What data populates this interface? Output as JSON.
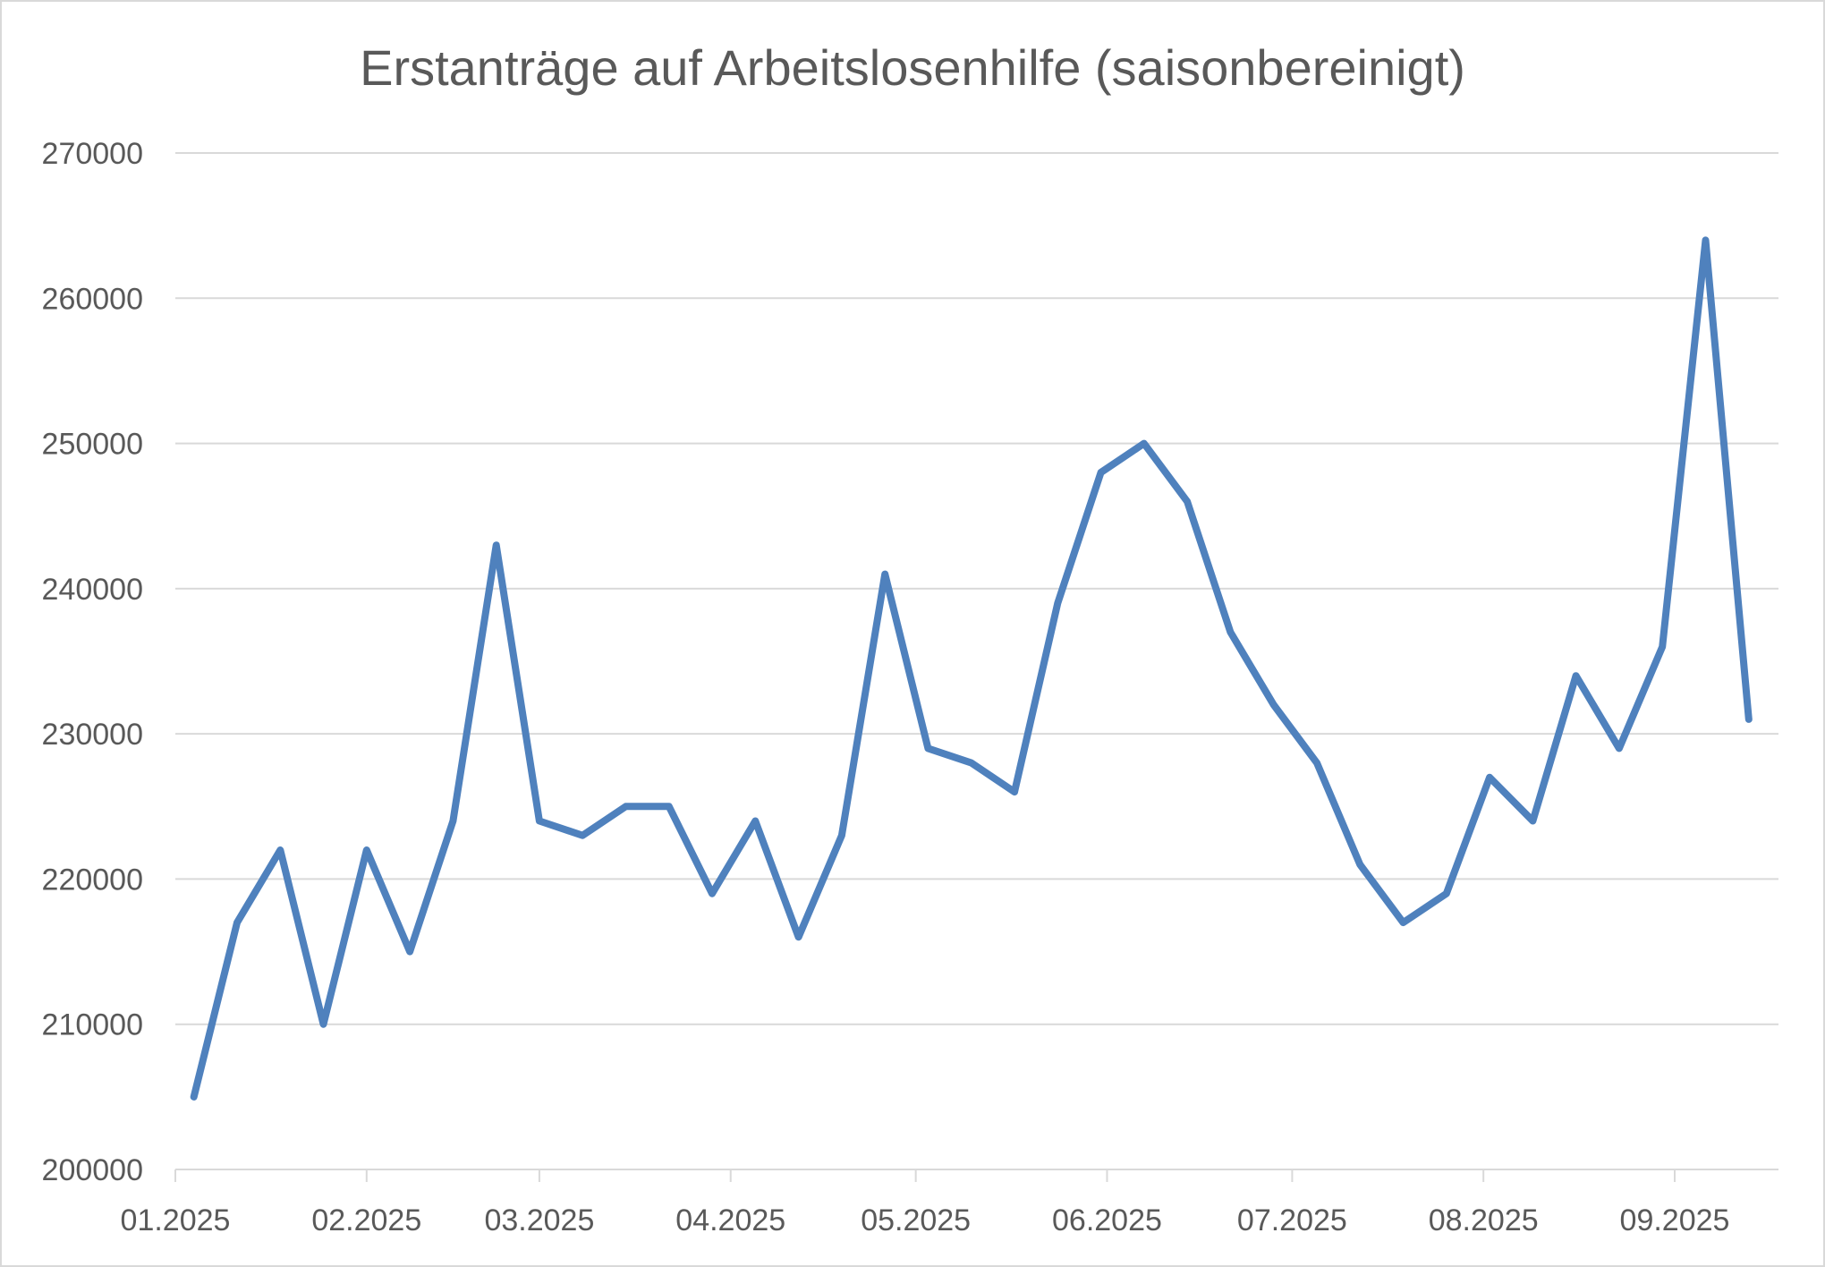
{
  "chart_data": {
    "type": "line",
    "title": "Erstanträge auf Arbeitslosenhilfe (saisonbereinigt)",
    "xlabel": "",
    "ylabel": "",
    "ylim": [
      200000,
      270000
    ],
    "yticks": [
      "200000",
      "210000",
      "220000",
      "230000",
      "240000",
      "250000",
      "260000",
      "270000"
    ],
    "xticks": [
      "01.2025",
      "02.2025",
      "03.2025",
      "04.2025",
      "05.2025",
      "06.2025",
      "07.2025",
      "08.2025",
      "09.2025"
    ],
    "grid": true,
    "legend": "none",
    "line_color": "#4f81bd",
    "x": [
      "2025-01-04",
      "2025-01-11",
      "2025-01-18",
      "2025-01-25",
      "2025-02-01",
      "2025-02-08",
      "2025-02-15",
      "2025-02-22",
      "2025-03-01",
      "2025-03-08",
      "2025-03-15",
      "2025-03-22",
      "2025-03-29",
      "2025-04-05",
      "2025-04-12",
      "2025-04-19",
      "2025-04-26",
      "2025-05-03",
      "2025-05-10",
      "2025-05-17",
      "2025-05-24",
      "2025-05-31",
      "2025-06-07",
      "2025-06-14",
      "2025-06-21",
      "2025-06-28",
      "2025-07-05",
      "2025-07-12",
      "2025-07-19",
      "2025-07-26",
      "2025-08-02",
      "2025-08-09",
      "2025-08-16",
      "2025-08-23",
      "2025-08-30",
      "2025-09-06",
      "2025-09-13"
    ],
    "series": [
      {
        "values": [
          205000,
          217000,
          222000,
          210000,
          222000,
          215000,
          224000,
          243000,
          224000,
          223000,
          225000,
          225000,
          219000,
          224000,
          216000,
          223000,
          241000,
          229000,
          228000,
          226000,
          239000,
          248000,
          250000,
          246000,
          237000,
          232000,
          228000,
          221000,
          217000,
          219000,
          227000,
          224000,
          234000,
          229000,
          236000,
          264000,
          231000
        ]
      }
    ]
  }
}
